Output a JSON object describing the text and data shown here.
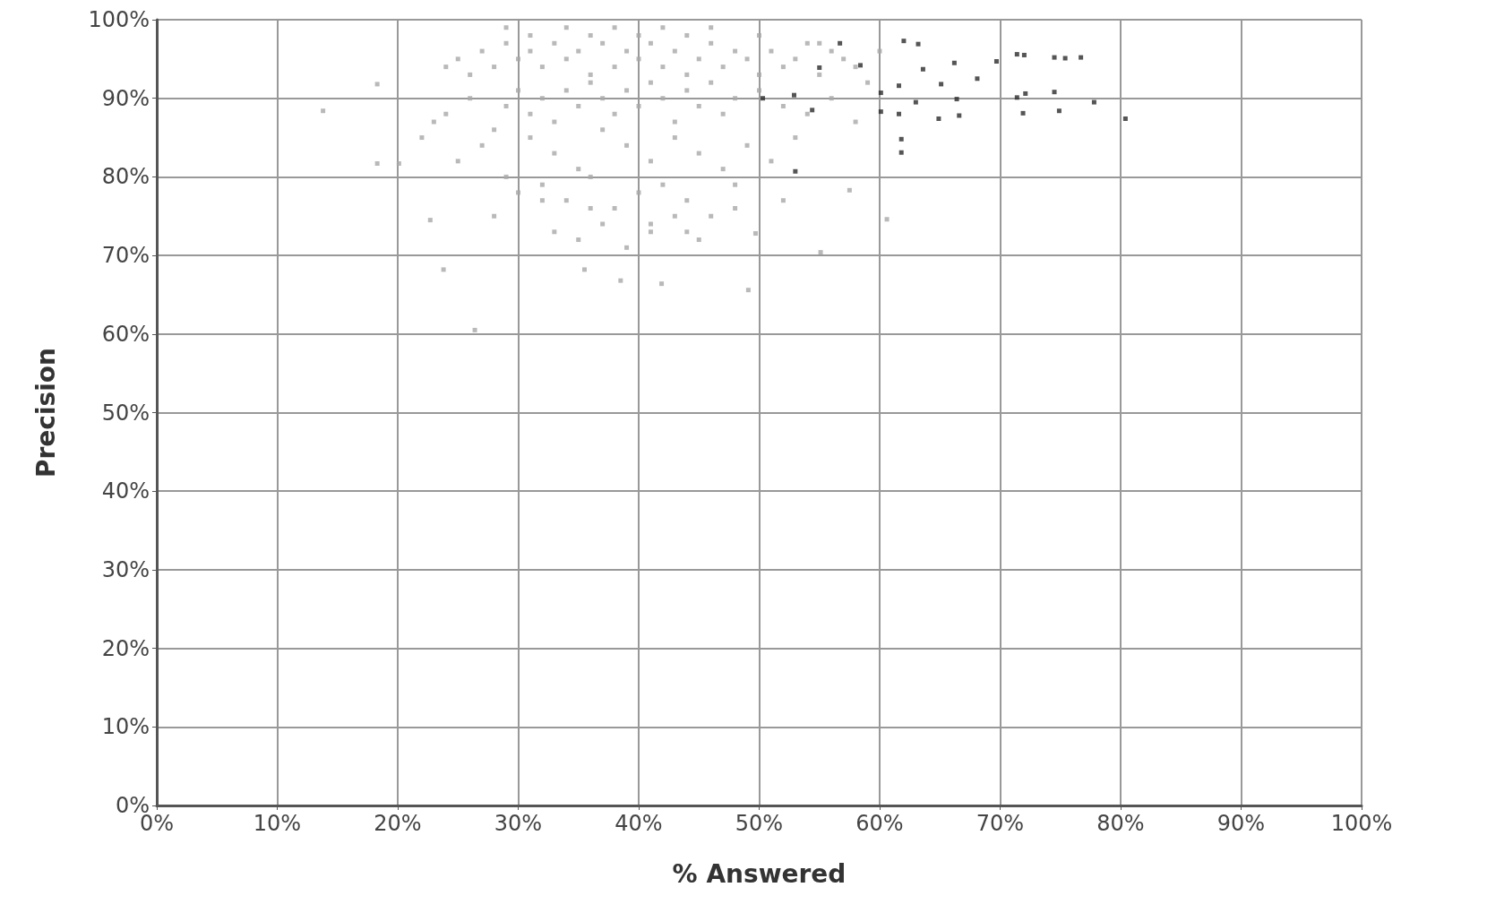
{
  "chart_data": {
    "type": "scatter",
    "xlabel": "% Answered",
    "ylabel": "Precision",
    "xlim": [
      0,
      100
    ],
    "ylim": [
      0,
      100
    ],
    "xticks": [
      {
        "value": 0,
        "label": "0%"
      },
      {
        "value": 10,
        "label": "10%"
      },
      {
        "value": 20,
        "label": "20%"
      },
      {
        "value": 30,
        "label": "30%"
      },
      {
        "value": 40,
        "label": "40%"
      },
      {
        "value": 50,
        "label": "50%"
      },
      {
        "value": 60,
        "label": "60%"
      },
      {
        "value": 70,
        "label": "70%"
      },
      {
        "value": 80,
        "label": "80%"
      },
      {
        "value": 90,
        "label": "90%"
      },
      {
        "value": 100,
        "label": "100%"
      }
    ],
    "yticks": [
      {
        "value": 0,
        "label": "0%"
      },
      {
        "value": 10,
        "label": "10%"
      },
      {
        "value": 20,
        "label": "20%"
      },
      {
        "value": 30,
        "label": "30%"
      },
      {
        "value": 40,
        "label": "40%"
      },
      {
        "value": 50,
        "label": "50%"
      },
      {
        "value": 60,
        "label": "60%"
      },
      {
        "value": 70,
        "label": "70%"
      },
      {
        "value": 80,
        "label": "80%"
      },
      {
        "value": 90,
        "label": "90%"
      },
      {
        "value": 100,
        "label": "100%"
      }
    ],
    "grid": true,
    "marker": "square",
    "series": [
      {
        "color": "#a8a8a8",
        "x": [
          13.8,
          18.3,
          18.3,
          20.1,
          23.8,
          26.4,
          22.7,
          35.5,
          38.5,
          41.9,
          49.1,
          49.7,
          55.1,
          57.5,
          60.6,
          24,
          25,
          26,
          27,
          28,
          29,
          30,
          31,
          32,
          33,
          34,
          35,
          36,
          37,
          38,
          39,
          40,
          41,
          42,
          43,
          44,
          45,
          46,
          47,
          48,
          49,
          50,
          51,
          52,
          53,
          54,
          55,
          56,
          57,
          58,
          59,
          22,
          23,
          24,
          26,
          28,
          29,
          30,
          31,
          32,
          33,
          34,
          35,
          36,
          37,
          38,
          39,
          40,
          41,
          42,
          43,
          44,
          45,
          46,
          47,
          48,
          50,
          52,
          54,
          56,
          58,
          25,
          27,
          29,
          31,
          33,
          35,
          37,
          39,
          41,
          43,
          45,
          47,
          49,
          51,
          53,
          30,
          32,
          34,
          36,
          38,
          40,
          42,
          44,
          46,
          48,
          33,
          35,
          37,
          39,
          41,
          43,
          45,
          29,
          31,
          34,
          36,
          38,
          40,
          42,
          44,
          46,
          50,
          55,
          60,
          28,
          32,
          36,
          41,
          44,
          48,
          52
        ],
        "values": [
          88.4,
          91.8,
          81.7,
          81.7,
          68.2,
          60.5,
          74.5,
          68.2,
          66.8,
          66.4,
          65.6,
          72.8,
          70.4,
          78.3,
          74.6,
          94,
          95,
          93,
          96,
          94,
          97,
          95,
          96,
          94,
          97,
          95,
          96,
          93,
          97,
          94,
          96,
          95,
          97,
          94,
          96,
          93,
          95,
          97,
          94,
          96,
          95,
          93,
          96,
          94,
          95,
          97,
          93,
          96,
          95,
          94,
          92,
          85,
          87,
          88,
          90,
          86,
          89,
          91,
          88,
          90,
          87,
          91,
          89,
          92,
          90,
          88,
          91,
          89,
          92,
          90,
          87,
          91,
          89,
          92,
          88,
          90,
          91,
          89,
          88,
          90,
          87,
          82,
          84,
          80,
          85,
          83,
          81,
          86,
          84,
          82,
          85,
          83,
          81,
          84,
          82,
          85,
          78,
          79,
          77,
          80,
          76,
          78,
          79,
          77,
          75,
          79,
          73,
          72,
          74,
          71,
          73,
          75,
          72,
          99,
          98,
          99,
          98,
          99,
          98,
          99,
          98,
          99,
          98,
          97,
          96,
          75,
          77,
          76,
          74,
          73,
          76,
          77
        ]
      },
      {
        "color": "#2a2a2a",
        "x": [
          62,
          63.2,
          71.4,
          72,
          74.5,
          75.4,
          76.7,
          69.7,
          66.2,
          63.6,
          65.1,
          68.1,
          61.6,
          60.1,
          63,
          66.4,
          71.4,
          72.1,
          74.5,
          77.8,
          71.9,
          74.9,
          64.9,
          66.6,
          80.4,
          61.8,
          61.8,
          53,
          58.4,
          55,
          56.7,
          52.9,
          54.4,
          50.3,
          61.6,
          60.1
        ],
        "values": [
          97.3,
          96.9,
          95.6,
          95.5,
          95.2,
          95.1,
          95.2,
          94.7,
          94.5,
          93.7,
          91.8,
          92.5,
          91.6,
          90.7,
          89.5,
          89.9,
          90.1,
          90.6,
          90.8,
          89.5,
          88.1,
          88.4,
          87.4,
          87.8,
          87.4,
          84.8,
          83.1,
          80.7,
          94.2,
          93.9,
          97,
          90.4,
          88.5,
          90,
          88,
          88.3
        ]
      }
    ]
  }
}
